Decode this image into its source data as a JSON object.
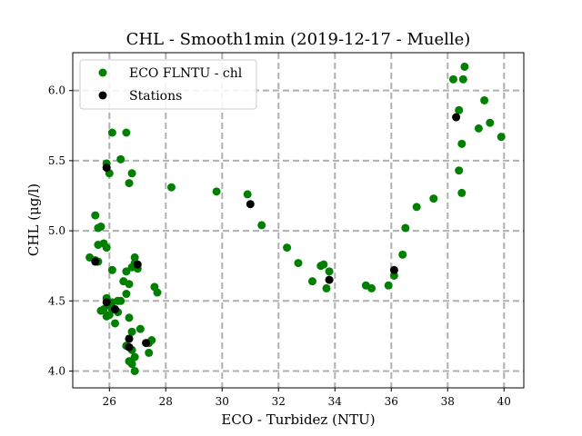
{
  "chart_data": {
    "type": "scatter",
    "title": "CHL - Smooth1min (2019-12-17 - Muelle)",
    "xlabel": "ECO - Turbidez (NTU)",
    "ylabel": "CHL (μg/l)",
    "xlim": [
      24.7,
      40.7
    ],
    "ylim": [
      3.88,
      6.27
    ],
    "xticks": [
      26,
      28,
      30,
      32,
      34,
      36,
      38,
      40
    ],
    "yticks": [
      4.0,
      4.5,
      5.0,
      5.5,
      6.0
    ],
    "xtick_labels": [
      "26",
      "28",
      "30",
      "32",
      "34",
      "36",
      "38",
      "40"
    ],
    "ytick_labels": [
      "4.0",
      "4.5",
      "5.0",
      "5.5",
      "6.0"
    ],
    "grid": true,
    "grid_style": "dashed",
    "legend_position": "top-left",
    "series": [
      {
        "name": "ECO FLNTU - chl",
        "color": "#008000",
        "x": [
          25.3,
          25.5,
          25.6,
          25.5,
          25.6,
          25.7,
          25.6,
          25.8,
          25.9,
          26.1,
          25.9,
          26.0,
          26.1,
          25.8,
          25.7,
          25.9,
          26.0,
          26.2,
          26.3,
          26.1,
          26.0,
          26.3,
          26.4,
          26.6,
          26.5,
          26.6,
          26.7,
          26.8,
          26.9,
          27.0,
          26.9,
          26.7,
          26.8,
          26.7,
          26.6,
          26.8,
          26.9,
          26.7,
          26.8,
          26.9,
          27.1,
          27.5,
          27.4,
          27.4,
          27.6,
          27.7,
          26.7,
          26.6,
          26.8,
          25.9,
          26.1,
          26.0,
          26.4,
          28.2,
          29.8,
          30.9,
          31.4,
          32.3,
          32.7,
          33.2,
          33.5,
          33.6,
          33.7,
          33.8,
          35.1,
          35.3,
          35.9,
          36.1,
          36.4,
          36.5,
          36.9,
          37.5,
          38.4,
          38.5,
          38.4,
          38.5,
          38.2,
          38.6,
          38.55,
          39.1,
          39.3,
          39.5,
          39.9
        ],
        "y": [
          4.81,
          4.79,
          4.78,
          5.11,
          5.02,
          5.03,
          4.9,
          4.91,
          4.88,
          4.72,
          4.52,
          4.48,
          4.49,
          4.44,
          4.43,
          4.39,
          4.4,
          4.34,
          4.5,
          4.44,
          4.47,
          4.42,
          4.5,
          4.71,
          4.64,
          4.55,
          4.62,
          4.74,
          4.77,
          4.73,
          4.81,
          4.38,
          4.28,
          4.23,
          4.18,
          4.15,
          4.1,
          4.07,
          4.05,
          4.0,
          4.3,
          4.22,
          4.13,
          4.2,
          4.6,
          4.56,
          5.34,
          5.7,
          5.41,
          5.48,
          5.7,
          5.41,
          5.51,
          5.31,
          5.28,
          5.26,
          5.04,
          4.88,
          4.77,
          4.64,
          4.75,
          4.76,
          4.59,
          4.71,
          4.61,
          4.59,
          4.61,
          4.68,
          4.83,
          5.02,
          5.17,
          5.23,
          5.43,
          5.27,
          5.86,
          5.62,
          6.08,
          6.17,
          6.08,
          5.73,
          5.93,
          5.77,
          5.67
        ]
      },
      {
        "name": "Stations",
        "color": "#000000",
        "x": [
          25.5,
          25.9,
          26.2,
          25.9,
          27.0,
          26.7,
          26.7,
          27.3,
          31.0,
          33.8,
          36.1,
          38.3
        ],
        "y": [
          4.78,
          5.45,
          4.44,
          4.49,
          4.76,
          4.23,
          4.17,
          4.2,
          5.19,
          4.65,
          4.72,
          5.81
        ]
      }
    ]
  }
}
